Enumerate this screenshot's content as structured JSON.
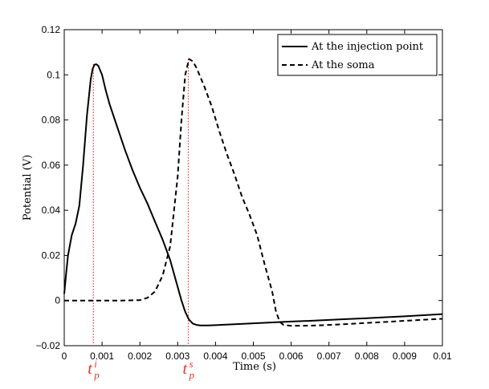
{
  "chart_data": {
    "type": "line",
    "xlabel": "Time (s)",
    "ylabel": "Potential (V)",
    "xlim": [
      0,
      0.01
    ],
    "ylim": [
      -0.02,
      0.12
    ],
    "xticks": [
      0,
      0.001,
      0.002,
      0.003,
      0.004,
      0.005,
      0.006,
      0.007,
      0.008,
      0.009,
      0.01
    ],
    "xtick_labels": [
      "0",
      "0.001",
      "0.002",
      "0.003",
      "0.004",
      "0.005",
      "0.006",
      "0.007",
      "0.008",
      "0.009",
      "0.01"
    ],
    "yticks": [
      -0.02,
      0,
      0.02,
      0.04,
      0.06,
      0.08,
      0.1,
      0.12
    ],
    "ytick_labels": [
      "−0.02",
      "0",
      "0.02",
      "0.04",
      "0.06",
      "0.08",
      "0.1",
      "0.12"
    ],
    "grid": false,
    "legend_position": "top-right",
    "series": [
      {
        "name": "At the injection point",
        "style": "solid",
        "color": "#000000",
        "x": [
          0,
          5e-05,
          0.0001,
          0.0002,
          0.0003,
          0.0004,
          0.0005,
          0.0006,
          0.0007,
          0.00075,
          0.0008,
          0.00085,
          0.0009,
          0.001,
          0.0011,
          0.0012,
          0.0014,
          0.0016,
          0.0018,
          0.002,
          0.0022,
          0.0024,
          0.0026,
          0.0028,
          0.003,
          0.0031,
          0.0032,
          0.0033,
          0.0034,
          0.0035,
          0.0036,
          0.0038,
          0.004,
          0.0045,
          0.005,
          0.0055,
          0.006,
          0.0065,
          0.007,
          0.0075,
          0.008,
          0.0085,
          0.009,
          0.0095,
          0.01
        ],
        "y": [
          0.003,
          0.012,
          0.02,
          0.029,
          0.034,
          0.042,
          0.06,
          0.082,
          0.098,
          0.1025,
          0.1045,
          0.1047,
          0.104,
          0.1,
          0.093,
          0.087,
          0.077,
          0.067,
          0.058,
          0.05,
          0.043,
          0.035,
          0.027,
          0.018,
          0.006,
          0.0,
          -0.005,
          -0.0085,
          -0.0102,
          -0.0108,
          -0.011,
          -0.011,
          -0.0109,
          -0.0105,
          -0.0101,
          -0.0097,
          -0.0093,
          -0.009,
          -0.0086,
          -0.0082,
          -0.0078,
          -0.0074,
          -0.007,
          -0.0065,
          -0.006
        ]
      },
      {
        "name": "At the soma",
        "style": "dashed",
        "color": "#000000",
        "x": [
          0,
          0.0005,
          0.001,
          0.0015,
          0.002,
          0.0022,
          0.0024,
          0.0026,
          0.0028,
          0.003,
          0.0031,
          0.0032,
          0.0033,
          0.0034,
          0.0035,
          0.0037,
          0.0039,
          0.0041,
          0.0043,
          0.0045,
          0.0047,
          0.0049,
          0.0051,
          0.0053,
          0.0055,
          0.0056,
          0.0057,
          0.0058,
          0.006,
          0.0065,
          0.007,
          0.0075,
          0.008,
          0.0085,
          0.009,
          0.0095,
          0.01
        ],
        "y": [
          0,
          0,
          0,
          0,
          0.0002,
          0.0012,
          0.004,
          0.011,
          0.024,
          0.055,
          0.08,
          0.1,
          0.107,
          0.106,
          0.103,
          0.095,
          0.086,
          0.075,
          0.065,
          0.056,
          0.046,
          0.038,
          0.029,
          0.016,
          0.004,
          -0.005,
          -0.0095,
          -0.0108,
          -0.0112,
          -0.0111,
          -0.0108,
          -0.0104,
          -0.0099,
          -0.0095,
          -0.009,
          -0.0085,
          -0.0081
        ]
      }
    ],
    "markers": [
      {
        "x": 0.00077,
        "base": "t",
        "sub": "p",
        "sup": "i",
        "color": "#e8322b"
      },
      {
        "x": 0.00328,
        "base": "t",
        "sub": "p",
        "sup": "s",
        "color": "#e8322b"
      }
    ]
  }
}
